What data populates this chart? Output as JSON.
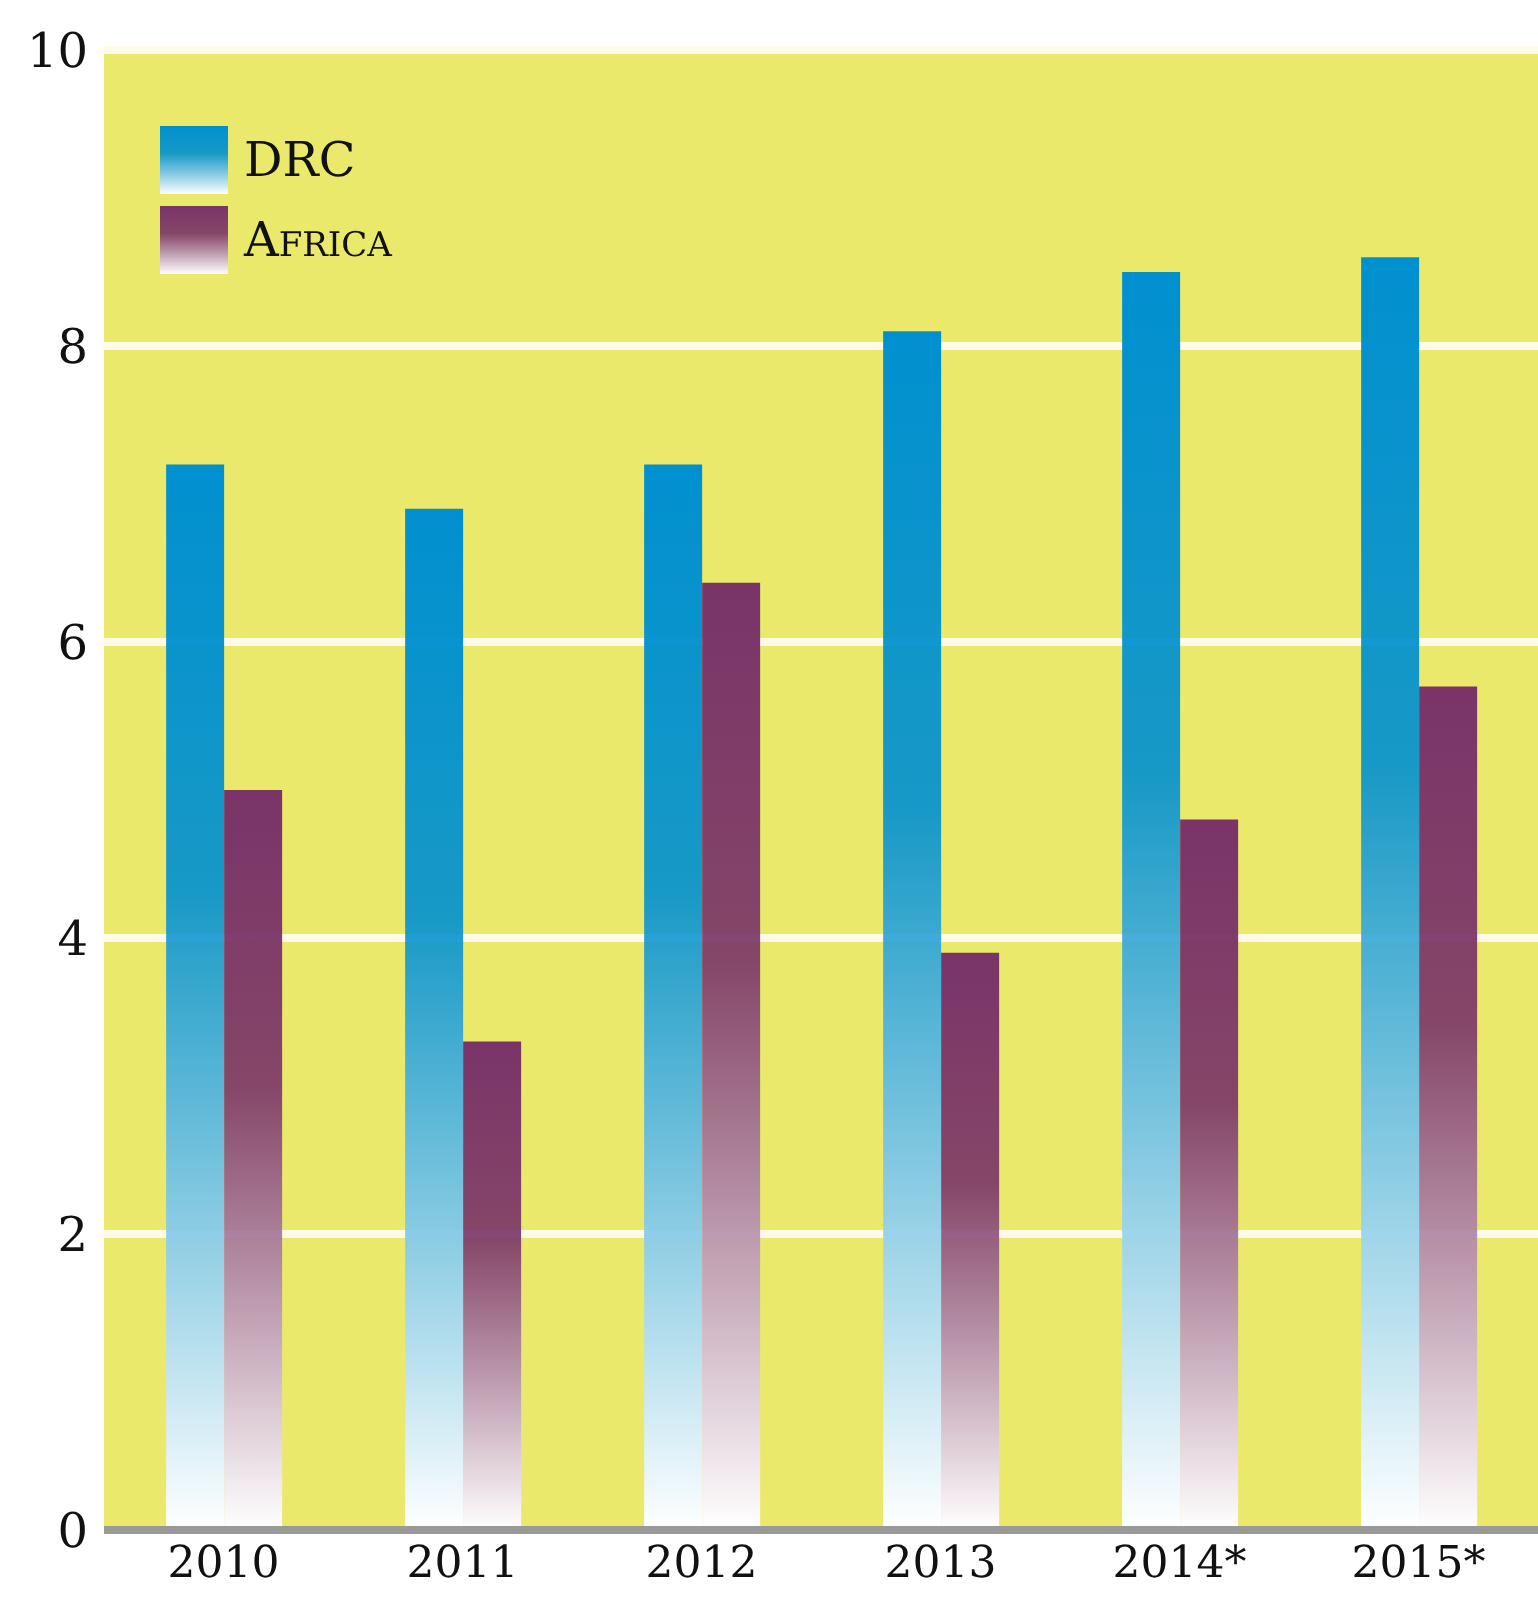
{
  "chart_data": {
    "type": "bar",
    "categories": [
      "2010",
      "2011",
      "2012",
      "2013",
      "2014*",
      "2015*"
    ],
    "series": [
      {
        "name": "DRC",
        "color": "#0090d0",
        "values": [
          7.2,
          6.9,
          7.2,
          8.1,
          8.5,
          8.6
        ]
      },
      {
        "name": "Africa",
        "color": "#7a3468",
        "values": [
          5.0,
          3.3,
          6.4,
          3.9,
          4.8,
          5.7
        ]
      }
    ],
    "ylim": [
      0,
      10
    ],
    "yticks": [
      0,
      2,
      4,
      6,
      8,
      10
    ],
    "grid": "y",
    "legend": "top left"
  }
}
